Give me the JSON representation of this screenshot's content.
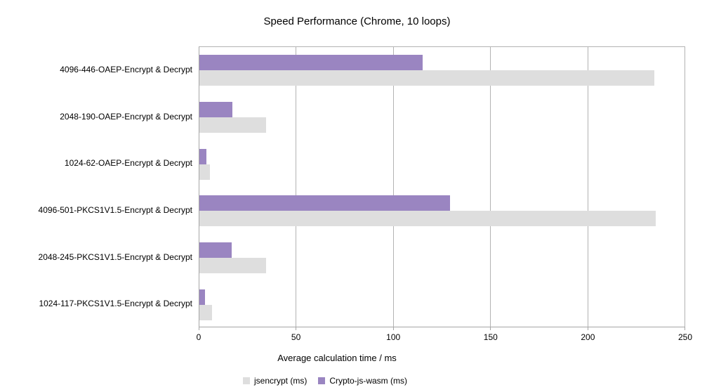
{
  "title": "Speed Performance (Chrome, 10 loops)",
  "chart_data": {
    "type": "bar",
    "orientation": "horizontal",
    "title": "Speed Performance (Chrome, 10 loops)",
    "xlabel": "Average calculation time / ms",
    "ylabel": "",
    "xlim": [
      0,
      250
    ],
    "xticks": [
      0,
      50,
      100,
      150,
      200,
      250
    ],
    "grid": true,
    "legend_position": "bottom",
    "categories": [
      "4096-446-OAEP-Encrypt & Decrypt",
      "2048-190-OAEP-Encrypt & Decrypt",
      "1024-62-OAEP-Encrypt & Decrypt",
      "4096-501-PKCS1V1.5-Encrypt & Decrypt",
      "2048-245-PKCS1V1.5-Encrypt & Decrypt",
      "1024-117-PKCS1V1.5-Encrypt & Decrypt"
    ],
    "series": [
      {
        "name": "jsencrypt (ms)",
        "color": "#dedede",
        "values": [
          234,
          34.5,
          5.5,
          235,
          34.5,
          6.5
        ]
      },
      {
        "name": "Crypto-js-wasm (ms)",
        "color": "#9a85c1",
        "values": [
          115,
          17,
          3.5,
          129,
          16.5,
          3
        ]
      }
    ]
  },
  "colors": {
    "axis_line": "#a6a6a6",
    "gridline": "#b3b3b3",
    "background": "#ffffff"
  }
}
